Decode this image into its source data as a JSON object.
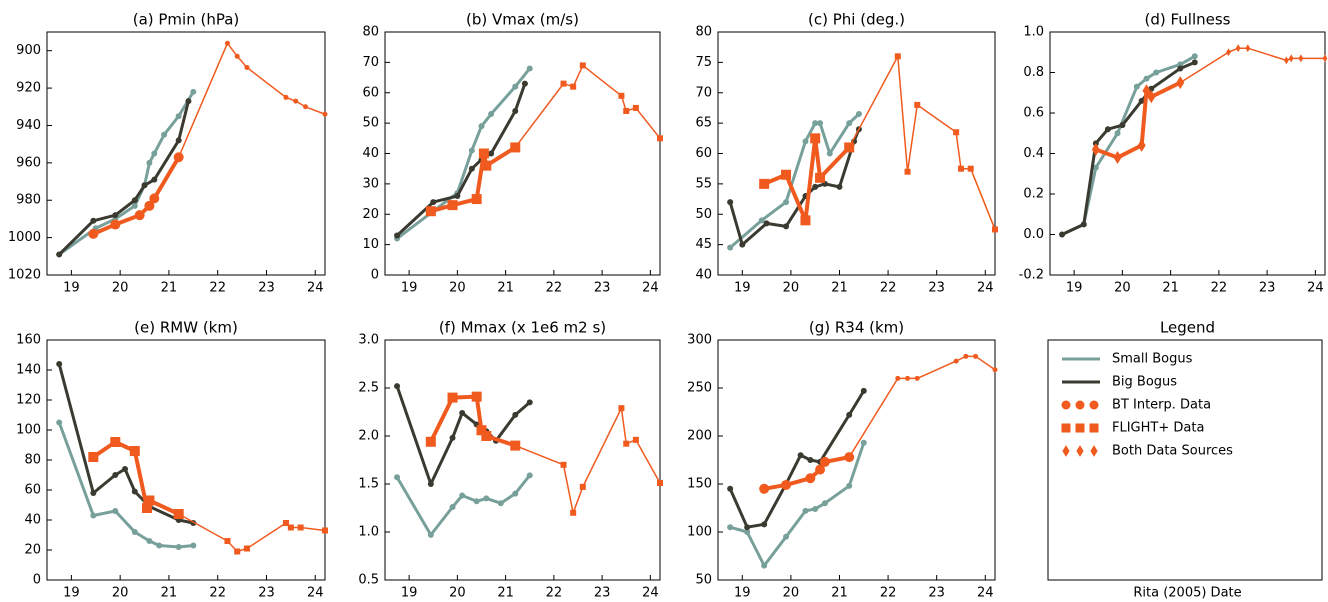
{
  "chart_data": [
    {
      "type": "line",
      "title": "(a) Pmin (hPa)",
      "xlim": [
        18.5,
        24.2
      ],
      "xticks": [
        19,
        20,
        21,
        22,
        23,
        24
      ],
      "ylim": [
        1020,
        890
      ],
      "yticks": [
        900,
        920,
        940,
        960,
        980,
        1000,
        1020
      ],
      "series": [
        {
          "color": "#78a09a",
          "width": 3,
          "marker": "circle",
          "marker_size": 3,
          "x": [
            18.75,
            19.5,
            19.9,
            20.3,
            20.5,
            20.6,
            20.7,
            20.9,
            21.2,
            21.5
          ],
          "values": [
            1009,
            995,
            990,
            983,
            972,
            960,
            955,
            945,
            935,
            922
          ]
        },
        {
          "color": "#3a3a30",
          "width": 3,
          "marker": "circle",
          "marker_size": 3,
          "x": [
            18.75,
            19.45,
            19.9,
            20.3,
            20.5,
            20.7,
            21.2,
            21.4
          ],
          "values": [
            1009,
            991,
            988,
            980,
            972,
            969,
            948,
            927
          ]
        },
        {
          "color": "#f05a1e",
          "width": 4,
          "marker": "circle",
          "marker_size": 5,
          "x": [
            19.45,
            19.9,
            20.4,
            20.6,
            20.7,
            21.2
          ],
          "values": [
            998,
            993,
            988,
            983,
            979,
            957
          ]
        },
        {
          "color": "#f05a1e",
          "width": 1.5,
          "marker": "circle",
          "marker_size": 2.5,
          "x": [
            21.2,
            22.2,
            22.4,
            22.6,
            23.4,
            23.6,
            23.8,
            24.2
          ],
          "values": [
            957,
            896,
            903,
            909,
            925,
            927,
            930,
            934
          ]
        }
      ]
    },
    {
      "type": "line",
      "title": "(b) Vmax (m/s)",
      "xlim": [
        18.5,
        24.2
      ],
      "xticks": [
        19,
        20,
        21,
        22,
        23,
        24
      ],
      "ylim": [
        0,
        80
      ],
      "yticks": [
        0,
        10,
        20,
        30,
        40,
        50,
        60,
        70,
        80
      ],
      "series": [
        {
          "color": "#78a09a",
          "width": 3,
          "marker": "circle",
          "marker_size": 3,
          "x": [
            18.75,
            19.5,
            20.0,
            20.3,
            20.5,
            20.7,
            21.2,
            21.5
          ],
          "values": [
            12,
            21,
            27,
            41,
            49,
            53,
            62,
            68
          ]
        },
        {
          "color": "#3a3a30",
          "width": 3,
          "marker": "circle",
          "marker_size": 3,
          "x": [
            18.75,
            19.5,
            20.0,
            20.3,
            20.5,
            20.7,
            21.2,
            21.4
          ],
          "values": [
            13,
            24,
            26,
            35,
            38,
            40,
            54,
            63
          ]
        },
        {
          "color": "#f05a1e",
          "width": 4,
          "marker": "square",
          "marker_size": 5,
          "x": [
            19.45,
            19.9,
            20.4,
            20.55,
            20.6,
            21.2
          ],
          "values": [
            21,
            23,
            25,
            40,
            36,
            42
          ]
        },
        {
          "color": "#f05a1e",
          "width": 1.5,
          "marker": "square",
          "marker_size": 3,
          "x": [
            21.2,
            22.2,
            22.4,
            22.6,
            23.4,
            23.5,
            23.7,
            24.2
          ],
          "values": [
            42,
            63,
            62,
            69,
            59,
            54,
            55,
            45
          ]
        }
      ]
    },
    {
      "type": "line",
      "title": "(c) Phi (deg.)",
      "xlim": [
        18.5,
        24.2
      ],
      "xticks": [
        19,
        20,
        21,
        22,
        23,
        24
      ],
      "ylim": [
        40,
        80
      ],
      "yticks": [
        40,
        45,
        50,
        55,
        60,
        65,
        70,
        75,
        80
      ],
      "series": [
        {
          "color": "#78a09a",
          "width": 3,
          "marker": "circle",
          "marker_size": 3,
          "x": [
            18.75,
            19.4,
            19.9,
            20.3,
            20.5,
            20.6,
            20.8,
            21.2,
            21.4
          ],
          "values": [
            44.5,
            49,
            52,
            62,
            65,
            65,
            60,
            65,
            66.5
          ]
        },
        {
          "color": "#3a3a30",
          "width": 3,
          "marker": "circle",
          "marker_size": 3,
          "x": [
            18.75,
            19.0,
            19.5,
            19.9,
            20.3,
            20.5,
            20.7,
            21.0,
            21.3,
            21.4
          ],
          "values": [
            52,
            45,
            48.5,
            48,
            53,
            54.5,
            55,
            54.5,
            62,
            64
          ]
        },
        {
          "color": "#f05a1e",
          "width": 4,
          "marker": "square",
          "marker_size": 5,
          "x": [
            19.45,
            19.9,
            20.3,
            20.5,
            20.6,
            21.2
          ],
          "values": [
            55,
            56.5,
            49,
            62.5,
            56,
            61
          ]
        },
        {
          "color": "#f05a1e",
          "width": 1.5,
          "marker": "square",
          "marker_size": 3,
          "x": [
            21.2,
            22.2,
            22.4,
            22.6,
            23.4,
            23.5,
            23.7,
            24.2
          ],
          "values": [
            61,
            76,
            57,
            68,
            63.5,
            57.5,
            57.5,
            47.5
          ]
        }
      ]
    },
    {
      "type": "line",
      "title": "(d) Fullness",
      "xlim": [
        18.5,
        24.2
      ],
      "xticks": [
        19,
        20,
        21,
        22,
        23,
        24
      ],
      "ylim": [
        -0.2,
        1.0
      ],
      "yticks": [
        -0.2,
        {
          "value": 0,
          "label": "0.0"
        },
        0.2,
        0.4,
        0.6,
        0.8,
        {
          "value": 1,
          "label": "1.0"
        }
      ],
      "series": [
        {
          "color": "#78a09a",
          "width": 3,
          "marker": "circle",
          "marker_size": 3,
          "x": [
            18.75,
            19.2,
            19.45,
            19.9,
            20.3,
            20.5,
            20.7,
            21.2,
            21.5
          ],
          "values": [
            0,
            0.05,
            0.33,
            0.5,
            0.73,
            0.77,
            0.8,
            0.84,
            0.88
          ]
        },
        {
          "color": "#3a3a30",
          "width": 3,
          "marker": "circle",
          "marker_size": 3,
          "x": [
            18.75,
            19.2,
            19.45,
            19.7,
            20.0,
            20.4,
            20.6,
            21.2,
            21.5
          ],
          "values": [
            0,
            0.05,
            0.45,
            0.52,
            0.54,
            0.66,
            0.72,
            0.82,
            0.85
          ]
        },
        {
          "color": "#f05a1e",
          "width": 4,
          "marker": "diamond",
          "marker_size": 5,
          "x": [
            19.45,
            19.9,
            20.4,
            20.5,
            20.6,
            21.2
          ],
          "values": [
            0.42,
            0.38,
            0.44,
            0.71,
            0.68,
            0.75
          ]
        },
        {
          "color": "#f05a1e",
          "width": 1.5,
          "marker": "diamond",
          "marker_size": 3,
          "x": [
            21.2,
            22.2,
            22.4,
            22.6,
            23.4,
            23.5,
            23.7,
            24.2
          ],
          "values": [
            0.75,
            0.9,
            0.92,
            0.92,
            0.86,
            0.87,
            0.87,
            0.87
          ]
        }
      ]
    },
    {
      "type": "line",
      "title": "(e) RMW (km)",
      "xlim": [
        18.5,
        24.2
      ],
      "xticks": [
        19,
        20,
        21,
        22,
        23,
        24
      ],
      "ylim": [
        0,
        160
      ],
      "yticks": [
        0,
        20,
        40,
        60,
        80,
        100,
        120,
        140,
        160
      ],
      "series": [
        {
          "color": "#78a09a",
          "width": 3,
          "marker": "circle",
          "marker_size": 3,
          "x": [
            18.75,
            19.45,
            19.9,
            20.3,
            20.6,
            20.8,
            21.2,
            21.5
          ],
          "values": [
            105,
            43,
            46,
            32,
            26,
            23,
            22,
            23
          ]
        },
        {
          "color": "#3a3a30",
          "width": 3,
          "marker": "circle",
          "marker_size": 3,
          "x": [
            18.75,
            19.45,
            19.9,
            20.1,
            20.3,
            20.6,
            21.2,
            21.5
          ],
          "values": [
            144,
            58,
            70,
            74,
            59,
            49,
            40,
            38
          ]
        },
        {
          "color": "#f05a1e",
          "width": 4,
          "marker": "square",
          "marker_size": 5,
          "x": [
            19.45,
            19.9,
            20.3,
            20.55,
            20.6,
            21.2
          ],
          "values": [
            82,
            92,
            86,
            48,
            53,
            44
          ]
        },
        {
          "color": "#f05a1e",
          "width": 1.5,
          "marker": "square",
          "marker_size": 3,
          "x": [
            21.2,
            22.2,
            22.4,
            22.6,
            23.4,
            23.5,
            23.7,
            24.2
          ],
          "values": [
            44,
            26,
            19,
            21,
            38,
            35,
            35,
            33
          ]
        }
      ]
    },
    {
      "type": "line",
      "title": "(f) Mmax (x 1e6 m2 s)",
      "xlim": [
        18.5,
        24.2
      ],
      "xticks": [
        19,
        20,
        21,
        22,
        23,
        24
      ],
      "ylim": [
        0.5,
        3.0
      ],
      "yticks": [
        0.5,
        {
          "value": 1,
          "label": "1.0"
        },
        1.5,
        {
          "value": 2,
          "label": "2.0"
        },
        2.5,
        {
          "value": 3,
          "label": "3.0"
        }
      ],
      "series": [
        {
          "color": "#78a09a",
          "width": 3,
          "marker": "circle",
          "marker_size": 3,
          "x": [
            18.75,
            19.45,
            19.9,
            20.1,
            20.4,
            20.6,
            20.9,
            21.2,
            21.5
          ],
          "values": [
            1.57,
            0.97,
            1.26,
            1.38,
            1.32,
            1.35,
            1.3,
            1.4,
            1.59
          ]
        },
        {
          "color": "#3a3a30",
          "width": 3,
          "marker": "circle",
          "marker_size": 3,
          "x": [
            18.75,
            19.45,
            19.9,
            20.1,
            20.4,
            20.6,
            20.8,
            21.2,
            21.5
          ],
          "values": [
            2.52,
            1.5,
            1.98,
            2.24,
            2.12,
            2.05,
            1.95,
            2.22,
            2.35
          ]
        },
        {
          "color": "#f05a1e",
          "width": 4,
          "marker": "square",
          "marker_size": 5,
          "x": [
            19.45,
            19.9,
            20.4,
            20.5,
            20.6,
            21.2
          ],
          "values": [
            1.94,
            2.4,
            2.41,
            2.06,
            2.0,
            1.9
          ]
        },
        {
          "color": "#f05a1e",
          "width": 1.5,
          "marker": "square",
          "marker_size": 3,
          "x": [
            21.2,
            22.2,
            22.4,
            22.6,
            23.4,
            23.5,
            23.7,
            24.2
          ],
          "values": [
            1.9,
            1.7,
            1.2,
            1.47,
            2.29,
            1.92,
            1.96,
            1.51
          ]
        }
      ]
    },
    {
      "type": "line",
      "title": "(g) R34 (km)",
      "xlim": [
        18.5,
        24.2
      ],
      "xticks": [
        19,
        20,
        21,
        22,
        23,
        24
      ],
      "ylim": [
        50,
        300
      ],
      "yticks": [
        50,
        100,
        150,
        200,
        250,
        300
      ],
      "series": [
        {
          "color": "#78a09a",
          "width": 3,
          "marker": "circle",
          "marker_size": 3,
          "x": [
            18.75,
            19.1,
            19.45,
            19.9,
            20.3,
            20.5,
            20.7,
            21.2,
            21.5
          ],
          "values": [
            105,
            100,
            65,
            95,
            122,
            124,
            130,
            148,
            193
          ]
        },
        {
          "color": "#3a3a30",
          "width": 3,
          "marker": "circle",
          "marker_size": 3,
          "x": [
            18.75,
            19.1,
            19.45,
            19.9,
            20.2,
            20.4,
            20.6,
            21.2,
            21.5
          ],
          "values": [
            145,
            105,
            108,
            150,
            180,
            175,
            173,
            222,
            247
          ]
        },
        {
          "color": "#f05a1e",
          "width": 4,
          "marker": "circle",
          "marker_size": 5,
          "x": [
            19.45,
            19.9,
            20.4,
            20.6,
            20.7,
            21.2
          ],
          "values": [
            145,
            149,
            156,
            165,
            173,
            178
          ]
        },
        {
          "color": "#f05a1e",
          "width": 1.5,
          "marker": "circle",
          "marker_size": 2.5,
          "x": [
            21.2,
            22.2,
            22.4,
            22.6,
            23.4,
            23.6,
            23.8,
            24.2
          ],
          "values": [
            178,
            260,
            260,
            260,
            278,
            283,
            283,
            269
          ]
        }
      ]
    }
  ],
  "legend": {
    "title": "Legend",
    "xlabel": "Rita (2005) Date",
    "entries": [
      {
        "name": "Small Bogus",
        "color": "#78a09a",
        "marker": "line"
      },
      {
        "name": "Big Bogus",
        "color": "#3a3a30",
        "marker": "line"
      },
      {
        "name": "BT Interp. Data",
        "color": "#f05a1e",
        "marker": "circle"
      },
      {
        "name": "FLIGHT+ Data",
        "color": "#f05a1e",
        "marker": "square"
      },
      {
        "name": "Both Data Sources",
        "color": "#f05a1e",
        "marker": "diamond"
      }
    ]
  }
}
